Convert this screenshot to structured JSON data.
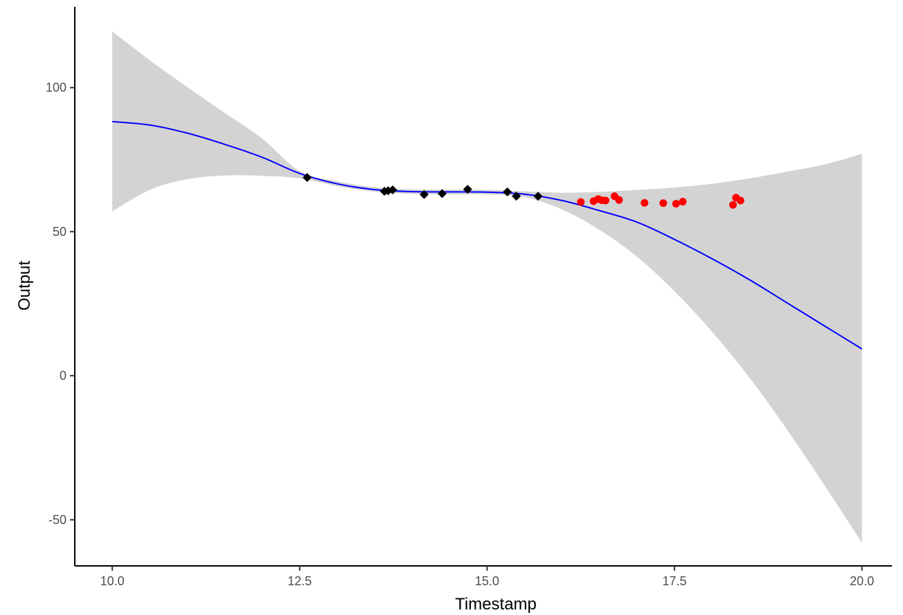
{
  "chart_data": {
    "type": "scatter",
    "xlabel": "Timestamp",
    "ylabel": "Output",
    "xlim": [
      9.5,
      20.4
    ],
    "ylim": [
      -66,
      128
    ],
    "x_ticks": [
      10.0,
      12.5,
      15.0,
      17.5,
      20.0
    ],
    "x_tick_labels": [
      "10.0",
      "12.5",
      "15.0",
      "17.5",
      "20.0"
    ],
    "y_ticks": [
      -50,
      0,
      50,
      100
    ],
    "y_tick_labels": [
      "-50",
      "0",
      "50",
      "100"
    ],
    "grid": false,
    "colors": {
      "fit_line": "#0000ff",
      "confidence_band": "#d3d3d3",
      "observed_points": "#000000",
      "forecast_points": "#ff0000"
    },
    "series": [
      {
        "kind": "scatter",
        "marker": "diamond",
        "color": "#000000",
        "points": [
          {
            "x": 12.6,
            "y": 68.8
          },
          {
            "x": 13.63,
            "y": 64.0
          },
          {
            "x": 13.68,
            "y": 64.2
          },
          {
            "x": 13.74,
            "y": 64.5
          },
          {
            "x": 14.16,
            "y": 62.9
          },
          {
            "x": 14.4,
            "y": 63.2
          },
          {
            "x": 14.74,
            "y": 64.7
          },
          {
            "x": 15.27,
            "y": 63.8
          },
          {
            "x": 15.39,
            "y": 62.3
          },
          {
            "x": 15.68,
            "y": 62.3
          }
        ]
      },
      {
        "kind": "scatter",
        "marker": "circle",
        "color": "#ff0000",
        "points": [
          {
            "x": 16.25,
            "y": 60.3
          },
          {
            "x": 16.42,
            "y": 60.6
          },
          {
            "x": 16.48,
            "y": 61.3
          },
          {
            "x": 16.53,
            "y": 60.9
          },
          {
            "x": 16.58,
            "y": 60.8
          },
          {
            "x": 16.7,
            "y": 62.3
          },
          {
            "x": 16.76,
            "y": 61.0
          },
          {
            "x": 17.1,
            "y": 60.0
          },
          {
            "x": 17.35,
            "y": 59.9
          },
          {
            "x": 17.52,
            "y": 59.7
          },
          {
            "x": 17.61,
            "y": 60.4
          },
          {
            "x": 18.28,
            "y": 59.3
          },
          {
            "x": 18.32,
            "y": 61.8
          },
          {
            "x": 18.38,
            "y": 60.8
          }
        ]
      },
      {
        "kind": "line",
        "color": "#0000ff",
        "points": [
          {
            "x": 10.0,
            "y": 88.2
          },
          {
            "x": 10.5,
            "y": 87.0
          },
          {
            "x": 11.0,
            "y": 84.2
          },
          {
            "x": 11.5,
            "y": 80.3
          },
          {
            "x": 12.0,
            "y": 75.8
          },
          {
            "x": 12.5,
            "y": 70.2
          },
          {
            "x": 13.0,
            "y": 66.6
          },
          {
            "x": 13.5,
            "y": 64.6
          },
          {
            "x": 14.0,
            "y": 63.9
          },
          {
            "x": 14.5,
            "y": 63.8
          },
          {
            "x": 15.0,
            "y": 63.7
          },
          {
            "x": 15.5,
            "y": 63.0
          },
          {
            "x": 16.0,
            "y": 60.8
          },
          {
            "x": 16.5,
            "y": 57.3
          },
          {
            "x": 17.0,
            "y": 53.3
          },
          {
            "x": 17.5,
            "y": 47.3
          },
          {
            "x": 18.0,
            "y": 40.6
          },
          {
            "x": 18.5,
            "y": 33.3
          },
          {
            "x": 19.0,
            "y": 25.3
          },
          {
            "x": 19.5,
            "y": 17.3
          },
          {
            "x": 20.0,
            "y": 9.3
          }
        ]
      },
      {
        "kind": "band",
        "color": "#d3d3d3",
        "points": [
          {
            "x": 10.0,
            "lower": 57.0,
            "upper": 119.5
          },
          {
            "x": 10.5,
            "lower": 64.5,
            "upper": 109.5
          },
          {
            "x": 11.0,
            "lower": 68.2,
            "upper": 100.2
          },
          {
            "x": 11.5,
            "lower": 69.5,
            "upper": 91.2
          },
          {
            "x": 12.0,
            "lower": 69.4,
            "upper": 82.3
          },
          {
            "x": 12.5,
            "lower": 68.5,
            "upper": 71.0
          },
          {
            "x": 13.0,
            "lower": 65.8,
            "upper": 67.5
          },
          {
            "x": 13.5,
            "lower": 63.9,
            "upper": 65.4
          },
          {
            "x": 14.0,
            "lower": 63.1,
            "upper": 64.7
          },
          {
            "x": 14.5,
            "lower": 62.9,
            "upper": 64.6
          },
          {
            "x": 15.0,
            "lower": 62.9,
            "upper": 64.5
          },
          {
            "x": 15.5,
            "lower": 62.0,
            "upper": 64.0
          },
          {
            "x": 16.0,
            "lower": 57.7,
            "upper": 63.5
          },
          {
            "x": 16.5,
            "lower": 50.6,
            "upper": 63.8
          },
          {
            "x": 17.0,
            "lower": 41.3,
            "upper": 64.5
          },
          {
            "x": 17.5,
            "lower": 29.3,
            "upper": 65.3
          },
          {
            "x": 18.0,
            "lower": 15.3,
            "upper": 66.6
          },
          {
            "x": 18.5,
            "lower": -0.7,
            "upper": 68.5
          },
          {
            "x": 19.0,
            "lower": -18.7,
            "upper": 70.8
          },
          {
            "x": 19.5,
            "lower": -38.0,
            "upper": 73.3
          },
          {
            "x": 20.0,
            "lower": -58.0,
            "upper": 77.0
          }
        ]
      }
    ]
  }
}
